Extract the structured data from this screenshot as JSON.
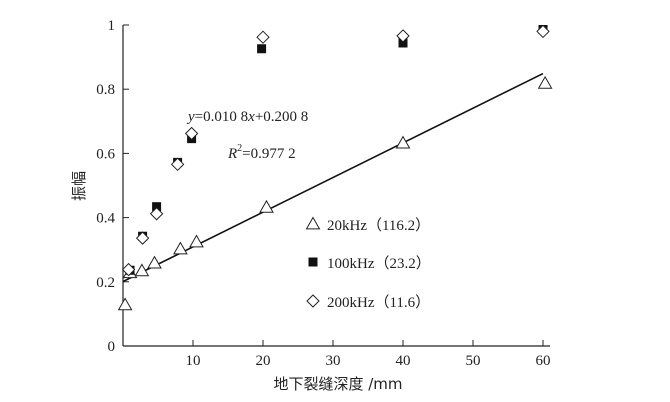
{
  "chart_data": {
    "type": "scatter",
    "xlabel": "地下裂缝深度 /mm",
    "ylabel": "振幅",
    "xlim": [
      0,
      61
    ],
    "ylim": [
      0,
      1
    ],
    "xticks": [
      10,
      20,
      30,
      40,
      50,
      60
    ],
    "yticks": [
      0,
      0.2,
      0.4,
      0.6,
      0.8,
      1
    ],
    "ytick_labels": [
      "0",
      "0.2",
      "0.4",
      "0.6",
      "0.8",
      "1"
    ],
    "legend_position": "center-right",
    "series": [
      {
        "name": "20kHz（116.2）",
        "marker": "triangle-open",
        "x": [
          0.3,
          1,
          2.7,
          4.5,
          8.2,
          10.5,
          20.5,
          40,
          60.3
        ],
        "y": [
          0.128,
          0.228,
          0.234,
          0.258,
          0.302,
          0.324,
          0.432,
          0.632,
          0.818
        ]
      },
      {
        "name": "100kHz（23.2）",
        "marker": "square-filled",
        "x": [
          1,
          2.8,
          4.8,
          7.8,
          9.8,
          19.8,
          40,
          60
        ],
        "y": [
          0.236,
          0.342,
          0.434,
          0.572,
          0.646,
          0.926,
          0.944,
          0.986
        ]
      },
      {
        "name": "200kHz（11.6）",
        "marker": "diamond-open",
        "x": [
          0.8,
          2.8,
          4.8,
          7.8,
          9.8,
          20,
          40,
          60
        ],
        "y": [
          0.238,
          0.336,
          0.412,
          0.566,
          0.662,
          0.962,
          0.966,
          0.98
        ]
      }
    ],
    "fit_line": {
      "slope": 0.0108,
      "intercept": 0.2008,
      "x_range": [
        0,
        60
      ],
      "equation_label": {
        "y": "y",
        "rest": "=0.010 8",
        "x": "x",
        "tail": "+0.200 8"
      },
      "r2_label": {
        "r": "R",
        "sup": "2",
        "rest": "=0.977 2"
      }
    }
  }
}
